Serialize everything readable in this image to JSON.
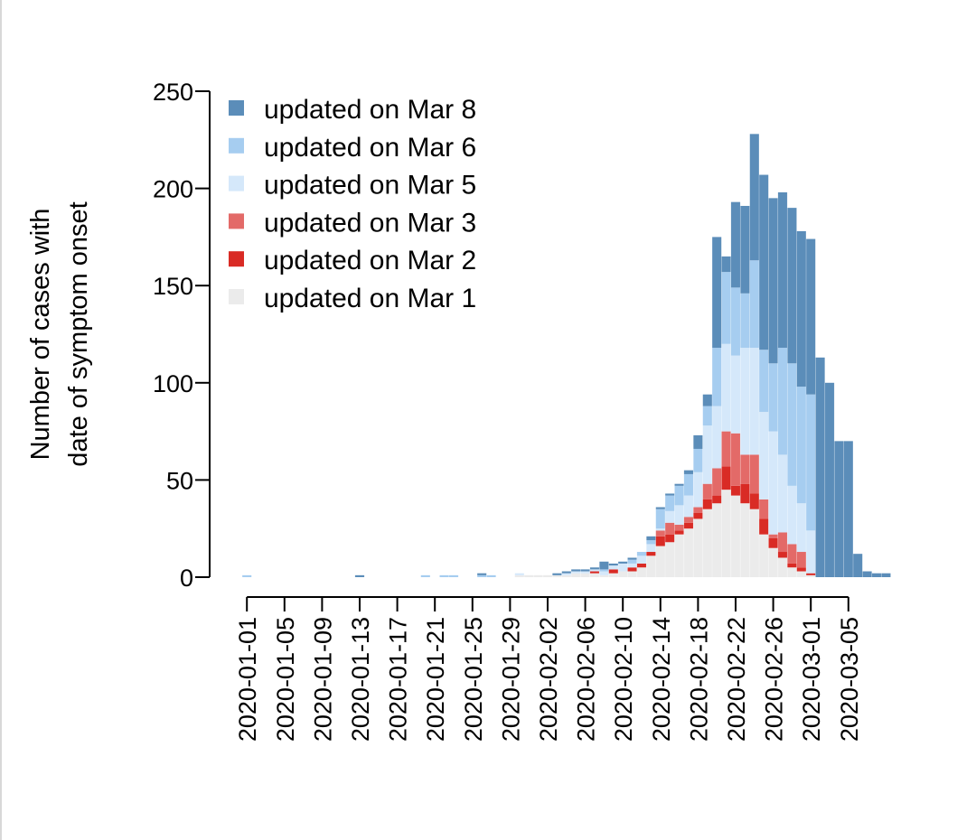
{
  "chart_data": {
    "type": "bar",
    "stacked": true,
    "ylabel": [
      "Number of cases with",
      "date of symptom onset"
    ],
    "ylim": [
      0,
      250
    ],
    "yticks": [
      0,
      50,
      100,
      150,
      200,
      250
    ],
    "xstart": "2020-01-01",
    "xticks": [
      "2020-01-01",
      "2020-01-05",
      "2020-01-09",
      "2020-01-13",
      "2020-01-17",
      "2020-01-21",
      "2020-01-25",
      "2020-01-29",
      "2020-02-02",
      "2020-02-06",
      "2020-02-10",
      "2020-02-14",
      "2020-02-18",
      "2020-02-22",
      "2020-02-26",
      "2020-03-01",
      "2020-03-05"
    ],
    "legend_position": "top-left",
    "series": [
      {
        "name": "updated on Mar 1",
        "color": "#ebebeb",
        "values": [
          0,
          0,
          0,
          0,
          0,
          0,
          0,
          0,
          0,
          0,
          0,
          0,
          0,
          0,
          0,
          0,
          0,
          0,
          0,
          0,
          0,
          0,
          0,
          0,
          0,
          0,
          0,
          0,
          0,
          1,
          1,
          1,
          1,
          1,
          1,
          2,
          2,
          2,
          1,
          2,
          3,
          3,
          5,
          11,
          16,
          18,
          22,
          25,
          30,
          35,
          38,
          45,
          42,
          38,
          35,
          22,
          15,
          10,
          5,
          3,
          1,
          0,
          0,
          0,
          0,
          0,
          0,
          0,
          0
        ]
      },
      {
        "name": "updated on Mar 2",
        "color": "#d92b25",
        "values": [
          0,
          0,
          0,
          0,
          0,
          0,
          0,
          0,
          0,
          0,
          0,
          0,
          0,
          0,
          0,
          0,
          0,
          0,
          0,
          0,
          0,
          0,
          0,
          0,
          0,
          0,
          0,
          0,
          0,
          0,
          0,
          0,
          0,
          0,
          0,
          0,
          0,
          1,
          0,
          2,
          0,
          2,
          2,
          2,
          5,
          4,
          2,
          3,
          3,
          5,
          4,
          12,
          5,
          10,
          8,
          8,
          5,
          3,
          2,
          2,
          1,
          0,
          0,
          0,
          0,
          0,
          0,
          0,
          0
        ]
      },
      {
        "name": "updated on Mar 3",
        "color": "#e36a68",
        "values": [
          0,
          0,
          0,
          0,
          0,
          0,
          0,
          0,
          0,
          0,
          0,
          0,
          0,
          0,
          0,
          0,
          0,
          0,
          0,
          0,
          0,
          0,
          0,
          0,
          0,
          0,
          0,
          0,
          0,
          0,
          0,
          0,
          0,
          0,
          0,
          0,
          0,
          0,
          0,
          0,
          0,
          0,
          0,
          0,
          3,
          6,
          3,
          3,
          3,
          8,
          14,
          18,
          27,
          15,
          20,
          10,
          2,
          10,
          10,
          8,
          0,
          0,
          0,
          0,
          0,
          0,
          0,
          0,
          0
        ]
      },
      {
        "name": "updated on Mar 5",
        "color": "#d5e8fa",
        "values": [
          0,
          0,
          0,
          0,
          0,
          0,
          0,
          0,
          0,
          0,
          0,
          0,
          0,
          0,
          0,
          0,
          0,
          0,
          0,
          0,
          0,
          0,
          0,
          0,
          0,
          0,
          0,
          0,
          0,
          1,
          0,
          0,
          0,
          0,
          1,
          1,
          1,
          1,
          2,
          2,
          4,
          2,
          4,
          4,
          1,
          6,
          10,
          11,
          18,
          30,
          32,
          45,
          40,
          55,
          55,
          45,
          53,
          40,
          30,
          25,
          22,
          0,
          0,
          0,
          0,
          0,
          0,
          0,
          0
        ]
      },
      {
        "name": "updated on Mar 6",
        "color": "#a6cdf0",
        "values": [
          1,
          0,
          0,
          0,
          0,
          0,
          0,
          0,
          0,
          0,
          0,
          0,
          0,
          0,
          0,
          0,
          0,
          0,
          0,
          1,
          0,
          1,
          1,
          0,
          0,
          1,
          1,
          0,
          0,
          0,
          0,
          0,
          0,
          0,
          0,
          0,
          0,
          0,
          1,
          0,
          0,
          2,
          2,
          2,
          10,
          8,
          10,
          11,
          12,
          10,
          30,
          37,
          35,
          28,
          45,
          32,
          35,
          55,
          63,
          60,
          70,
          0,
          0,
          0,
          0,
          0,
          0,
          0,
          0
        ]
      },
      {
        "name": "updated on Mar 8",
        "color": "#5b8db9",
        "values": [
          0,
          0,
          0,
          0,
          0,
          0,
          0,
          0,
          0,
          0,
          0,
          0,
          1,
          0,
          0,
          0,
          0,
          0,
          0,
          0,
          0,
          0,
          0,
          0,
          0,
          1,
          0,
          0,
          0,
          0,
          0,
          0,
          0,
          1,
          1,
          1,
          1,
          1,
          4,
          1,
          1,
          1,
          0,
          2,
          1,
          1,
          1,
          2,
          7,
          6,
          57,
          8,
          44,
          45,
          65,
          90,
          85,
          80,
          80,
          80,
          80,
          113,
          100,
          70,
          70,
          12,
          3,
          2,
          2
        ]
      }
    ]
  }
}
